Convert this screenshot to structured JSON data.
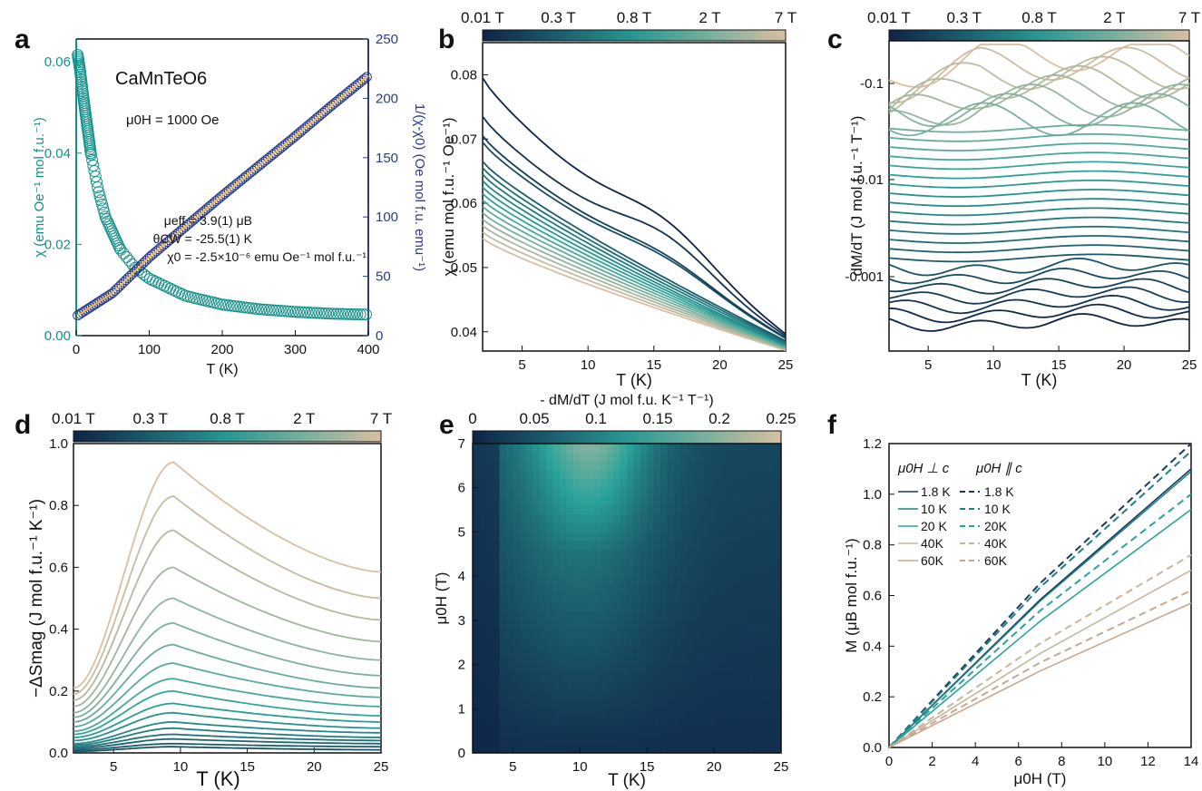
{
  "colors": {
    "dark_navy": "#1b3a5c",
    "teal": "#2aa39a",
    "tan": "#d9bfa2",
    "axis_blue": "#2b3a8a",
    "axis_teal": "#14908a"
  },
  "chart_data": [
    {
      "panel": "a",
      "type": "scatter",
      "annotations": [
        "CaMnTeO6",
        "μ0H = 1000 Oe",
        "μeff = 3.9(1) μB",
        "θCW = -25.5(1) K",
        "χ0 = -2.5×10⁻⁶ emu Oe⁻¹ mol f.u.⁻¹"
      ],
      "xlabel": "T (K)",
      "ylabel_left": "χ (emu Oe⁻¹ mol f.u.⁻¹)",
      "ylabel_right": "1/(χ-χ0) (Oe mol f.u. emu⁻¹)",
      "xlim": [
        0,
        400
      ],
      "ylim_left": [
        0,
        0.065
      ],
      "ylim_right": [
        0,
        250
      ],
      "x_ticks": [
        "0",
        "100",
        "200",
        "300",
        "400"
      ],
      "y_left_ticks": [
        "0.00",
        "0.02",
        "0.04",
        "0.06"
      ],
      "y_right_ticks": [
        "0",
        "50",
        "100",
        "150",
        "200",
        "250"
      ],
      "series": [
        {
          "axis": "left",
          "x": [
            2,
            5,
            10,
            20,
            30,
            40,
            60,
            80,
            100,
            150,
            200,
            250,
            300,
            350,
            400
          ],
          "values": [
            0.0615,
            0.0585,
            0.052,
            0.04,
            0.032,
            0.026,
            0.019,
            0.015,
            0.0125,
            0.0087,
            0.0068,
            0.0058,
            0.0052,
            0.0048,
            0.0046
          ]
        },
        {
          "axis": "right",
          "x": [
            2,
            50,
            100,
            150,
            200,
            250,
            300,
            350,
            400
          ],
          "values": [
            17,
            36,
            66,
            92,
            118,
            143,
            168,
            194,
            219
          ]
        }
      ]
    },
    {
      "panel": "b",
      "type": "line",
      "xlabel": "T (K)",
      "ylabel": "χ (emu mol f.u.⁻¹ Oe⁻¹)",
      "xlim": [
        2,
        25
      ],
      "ylim": [
        0.037,
        0.085
      ],
      "x_ticks": [
        "5",
        "10",
        "15",
        "20",
        "25"
      ],
      "y_ticks": [
        "0.04",
        "0.05",
        "0.06",
        "0.07",
        "0.08"
      ],
      "colorbar_ticks": [
        "0.01 T",
        "0.3 T",
        "0.8 T",
        "2 T",
        "7 T"
      ],
      "curves_start": [
        0.0795,
        0.0735,
        0.0705,
        0.0695,
        0.0665,
        0.0655,
        0.0645,
        0.0635,
        0.0625,
        0.0615,
        0.0605,
        0.0595,
        0.0585,
        0.0575,
        0.0565,
        0.0555,
        0.0545
      ],
      "curves_end": [
        0.0395,
        0.0392,
        0.039,
        0.0389,
        0.0386,
        0.0384,
        0.0382,
        0.038,
        0.0379,
        0.0378,
        0.0377,
        0.0376,
        0.0375,
        0.0374,
        0.0373,
        0.0372,
        0.0371
      ]
    },
    {
      "panel": "c",
      "type": "line",
      "xlabel": "T (K)",
      "ylabel": "dM/dT (J mol f.u.⁻¹ T⁻¹)",
      "xlim": [
        2,
        25
      ],
      "x_ticks": [
        "5",
        "10",
        "15",
        "20",
        "25"
      ],
      "y_ticks": [
        "-0.1",
        "-0.01",
        "-0.001"
      ],
      "colorbar_ticks": [
        "0.01 T",
        "0.3 T",
        "0.8 T",
        "2 T",
        "7 T"
      ]
    },
    {
      "panel": "d",
      "type": "line",
      "xlabel": "T (K)",
      "ylabel": "−ΔSmag (J mol f.u.⁻¹ K⁻¹)",
      "xlim": [
        2,
        25
      ],
      "ylim": [
        0,
        1.0
      ],
      "x_ticks": [
        "5",
        "10",
        "15",
        "20",
        "25"
      ],
      "y_ticks": [
        "0.0",
        "0.2",
        "0.4",
        "0.6",
        "0.8",
        "1.0"
      ],
      "colorbar_ticks": [
        "0.01 T",
        "0.3 T",
        "0.8 T",
        "2 T",
        "7 T"
      ],
      "peaks": [
        0.94,
        0.83,
        0.72,
        0.6,
        0.5,
        0.42,
        0.35,
        0.29,
        0.24,
        0.2,
        0.16,
        0.13,
        0.1,
        0.08,
        0.06,
        0.045,
        0.03,
        0.02
      ],
      "start": [
        0.21,
        0.19,
        0.17,
        0.15,
        0.13,
        0.115,
        0.1,
        0.085,
        0.07,
        0.06,
        0.05,
        0.04,
        0.03,
        0.025,
        0.02,
        0.015,
        0.01,
        0.005
      ],
      "end": [
        0.585,
        0.5,
        0.43,
        0.36,
        0.3,
        0.25,
        0.21,
        0.18,
        0.15,
        0.12,
        0.1,
        0.08,
        0.065,
        0.05,
        0.04,
        0.03,
        0.02,
        0.01
      ]
    },
    {
      "panel": "e",
      "type": "heatmap",
      "xlabel": "T (K)",
      "ylabel": "μ0H (T)",
      "xlim": [
        2,
        25
      ],
      "ylim": [
        0,
        7
      ],
      "x_ticks": [
        "5",
        "10",
        "15",
        "20",
        "25"
      ],
      "y_ticks": [
        "0",
        "1",
        "2",
        "3",
        "4",
        "5",
        "6",
        "7"
      ],
      "colorbar_label": "- dM/dT (J mol f.u. K⁻¹ T⁻¹)",
      "colorbar_ticks": [
        "0",
        "0.05",
        "0.1",
        "0.15",
        "0.2",
        "0.25"
      ]
    },
    {
      "panel": "f",
      "type": "line",
      "xlabel": "μ0H (T)",
      "ylabel": "M (μB mol f.u.⁻¹)",
      "xlim": [
        0,
        14
      ],
      "ylim": [
        0,
        1.2
      ],
      "x_ticks": [
        "0",
        "2",
        "4",
        "6",
        "8",
        "10",
        "12",
        "14"
      ],
      "y_ticks": [
        "0.0",
        "0.2",
        "0.4",
        "0.6",
        "0.8",
        "1.0",
        "1.2"
      ],
      "legend_headers": [
        "μ0H ⊥ c",
        "μ0H ∥ c"
      ],
      "legend_perp": [
        "1.8 K",
        "10 K",
        "20 K",
        "40K",
        "60K"
      ],
      "legend_par": [
        "1.8 K",
        "10 K",
        "20K",
        "40K",
        "60K"
      ],
      "series_perp_end": [
        1.1,
        1.09,
        0.94,
        0.7,
        0.57
      ],
      "series_par_end": [
        1.2,
        1.17,
        1.0,
        0.76,
        0.62
      ]
    }
  ],
  "panel_labels": [
    "a",
    "b",
    "c",
    "d",
    "e",
    "f"
  ]
}
